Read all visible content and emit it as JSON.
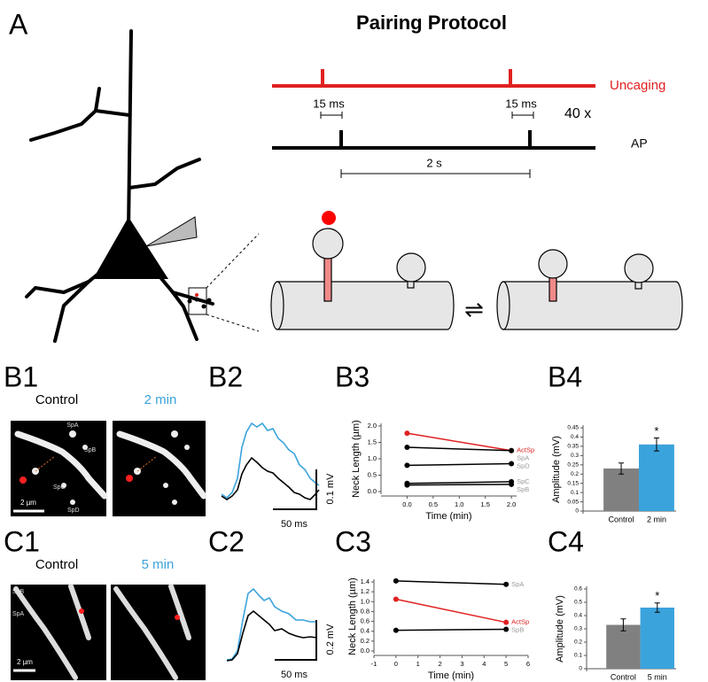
{
  "panels": {
    "A": {
      "label": "A",
      "title": "Pairing Protocol",
      "uncaging": "Uncaging",
      "pulse_width_1": "15 ms",
      "pulse_width_2": "15 ms",
      "repeats": "40 x",
      "ap": "AP",
      "interval": "2 s"
    },
    "B1": {
      "label": "B1",
      "control": "Control",
      "after": "2 min",
      "spines": [
        "SpA",
        "SpB",
        "SpC",
        "SpD"
      ],
      "scale": "2 µm"
    },
    "B2": {
      "label": "B2",
      "y_scale": "0.1 mV",
      "x_scale": "50 ms"
    },
    "B3": {
      "label": "B3"
    },
    "B4": {
      "label": "B4"
    },
    "C1": {
      "label": "C1",
      "control": "Control",
      "after": "5 min",
      "spines": [
        "SpB",
        "SpA"
      ],
      "scale": "2 µm"
    },
    "C2": {
      "label": "C2",
      "y_scale": "0.2 mV",
      "x_scale": "50 ms"
    },
    "C3": {
      "label": "C3"
    },
    "C4": {
      "label": "C4"
    }
  },
  "chart_data": [
    {
      "type": "line",
      "x_label": "Time (min)",
      "y_label": "Neck Length (µm)",
      "xlim": [
        -0.5,
        2.1
      ],
      "xticks": [
        {
          "value": 0,
          "label": "0.0"
        },
        0.5,
        {
          "value": 1,
          "label": "1.0"
        },
        1.5,
        {
          "value": 2,
          "label": "2.0"
        }
      ],
      "ylim": [
        0,
        2
      ],
      "yticks": [
        {
          "value": 0,
          "label": "0.0"
        },
        0.5,
        {
          "value": 1,
          "label": "1.0"
        },
        1.5,
        {
          "value": 2,
          "label": "2.0"
        }
      ],
      "series": [
        {
          "name": "ActSp",
          "color": "#e02020",
          "label_color": "#e02020",
          "x": [
            0,
            2
          ],
          "values": [
            1.78,
            1.25
          ]
        },
        {
          "name": "SpA",
          "color": "#000000",
          "label_color": "#999999",
          "x": [
            0,
            2
          ],
          "values": [
            1.35,
            1.25
          ]
        },
        {
          "name": "SpD",
          "color": "#000000",
          "label_color": "#999999",
          "x": [
            0,
            2
          ],
          "values": [
            0.8,
            0.85
          ]
        },
        {
          "name": "SpC",
          "color": "#000000",
          "label_color": "#999999",
          "x": [
            0,
            2
          ],
          "values": [
            0.25,
            0.3
          ]
        },
        {
          "name": "SpB",
          "color": "#000000",
          "label_color": "#999999",
          "x": [
            0,
            2
          ],
          "values": [
            0.2,
            0.22
          ]
        }
      ]
    },
    {
      "type": "bar",
      "y_label": "Amplitude (mV)",
      "categories": [
        "Control",
        "2 min"
      ],
      "values": [
        0.23,
        0.36
      ],
      "errors": [
        0.03,
        0.035
      ],
      "colors": [
        "#808080",
        "#3ba3dc"
      ],
      "ylim": [
        0,
        0.45
      ],
      "yticks": [
        0,
        0.05,
        0.1,
        0.15,
        0.2,
        0.25,
        0.3,
        0.35,
        0.4,
        0.45
      ],
      "annotation": {
        "text": "*",
        "category": "2 min"
      }
    },
    {
      "type": "line",
      "x_label": "Time (min)",
      "y_label": "Neck Length (µm)",
      "xlim": [
        -1,
        6
      ],
      "xticks": [
        -1,
        0,
        1,
        2,
        3,
        4,
        5,
        6
      ],
      "ylim": [
        0,
        1.4
      ],
      "yticks": [
        {
          "value": 0,
          "label": "0.0"
        },
        0.2,
        0.4,
        0.6,
        0.8,
        {
          "value": 1,
          "label": "1.0"
        },
        1.2,
        1.4
      ],
      "series": [
        {
          "name": "SpA",
          "color": "#000000",
          "label_color": "#999999",
          "x": [
            0,
            5
          ],
          "values": [
            1.42,
            1.35
          ]
        },
        {
          "name": "ActSp",
          "color": "#e02020",
          "label_color": "#e02020",
          "x": [
            0,
            5
          ],
          "values": [
            1.05,
            0.58
          ]
        },
        {
          "name": "SpB",
          "color": "#000000",
          "label_color": "#999999",
          "x": [
            0,
            5
          ],
          "values": [
            0.42,
            0.44
          ]
        }
      ]
    },
    {
      "type": "bar",
      "y_label": "Amplitude (mV)",
      "categories": [
        "Control",
        "5 min"
      ],
      "values": [
        0.33,
        0.46
      ],
      "errors": [
        0.045,
        0.035
      ],
      "colors": [
        "#808080",
        "#3ba3dc"
      ],
      "ylim": [
        0,
        0.6
      ],
      "yticks": [
        0,
        0.1,
        0.2,
        0.3,
        0.4,
        0.5,
        0.6
      ],
      "annotation": {
        "text": "*",
        "category": "5 min"
      }
    }
  ]
}
